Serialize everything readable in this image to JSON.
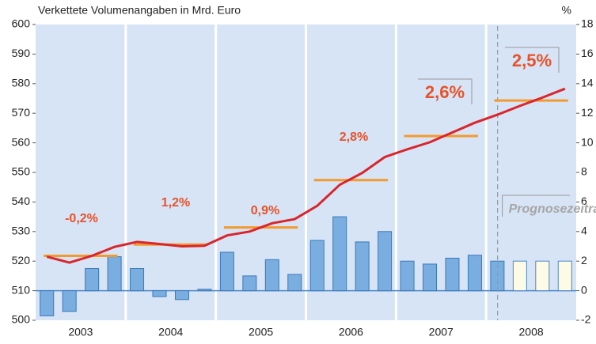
{
  "chart_data": {
    "type": "combo",
    "title": "Verkettete Volumenangaben in Mrd. Euro",
    "y2_label": "%",
    "categories": [
      null,
      null,
      null,
      null,
      null,
      null,
      null,
      null,
      null,
      null,
      null,
      null,
      null,
      null,
      null,
      null,
      null,
      null,
      null,
      null,
      null,
      null,
      null,
      null
    ],
    "years": [
      "2003",
      "2004",
      "2005",
      "2006",
      "2007",
      "2008"
    ],
    "ylim": [
      500,
      600
    ],
    "yticks": [
      500,
      510,
      520,
      530,
      540,
      550,
      560,
      570,
      580,
      590,
      600
    ],
    "y2lim": [
      -2,
      18
    ],
    "y2ticks": [
      -2,
      0,
      2,
      4,
      6,
      8,
      10,
      12,
      14,
      16,
      18
    ],
    "series": [
      {
        "type": "bar",
        "axis": "y2",
        "color": "#7aaee0",
        "forecast_color": "#fdfbe6",
        "forecast_from": 21,
        "values": [
          -1.7,
          -1.4,
          1.5,
          2.3,
          1.5,
          -0.4,
          -0.6,
          0.1,
          2.6,
          1.0,
          2.1,
          1.1,
          3.4,
          5.0,
          3.3,
          4.0,
          2.0,
          1.8,
          2.2,
          2.4,
          2.0,
          2.0,
          2.0,
          2.0
        ]
      },
      {
        "type": "line",
        "color": "#d9262c",
        "values": [
          521.5,
          519.5,
          521.8,
          524.8,
          526.5,
          525.8,
          525.0,
          525.2,
          528.7,
          530.0,
          532.8,
          534.2,
          538.7,
          545.8,
          549.8,
          555.2,
          557.8,
          560.2,
          563.5,
          566.8,
          569.5,
          572.5,
          575.3,
          578.3
        ]
      }
    ],
    "annual": {
      "color": "#f39a2e",
      "values": [
        521.8,
        525.6,
        531.4,
        547.4,
        562.3,
        574.3
      ],
      "labels": [
        "-0,2%",
        "1,2%",
        "0,9%",
        "2,8%",
        "2,6%",
        "2,5%"
      ]
    },
    "forecast_label": "Prognosezeitraum"
  }
}
